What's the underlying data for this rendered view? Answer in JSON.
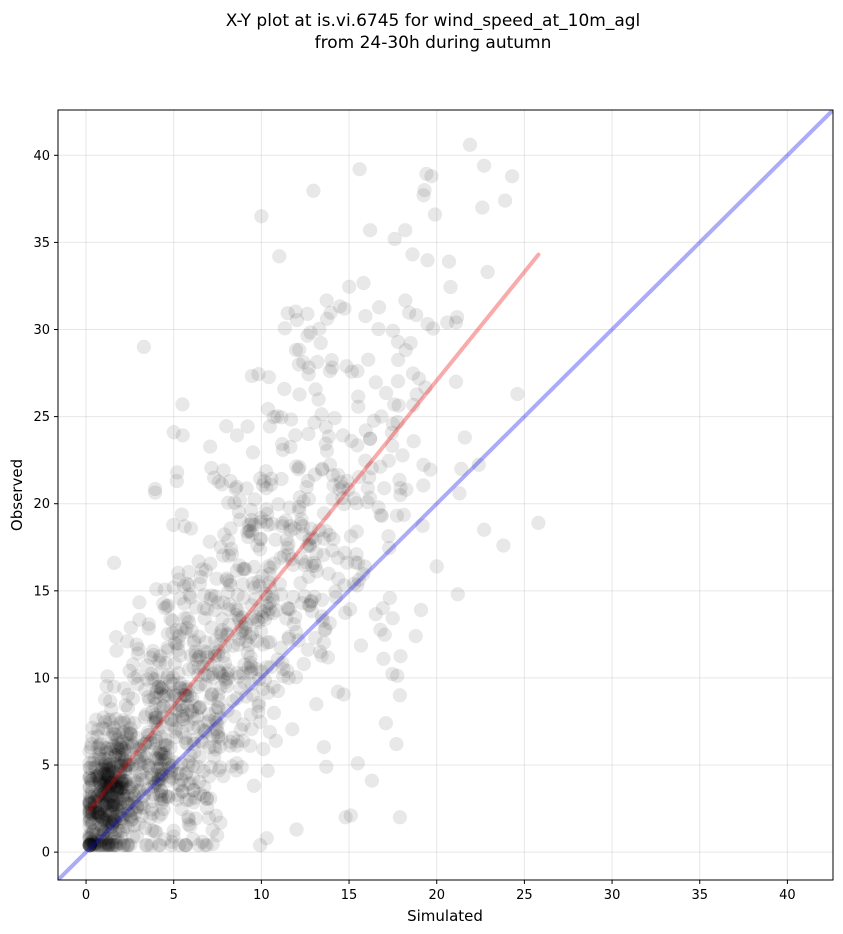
{
  "chart_data": {
    "type": "scatter",
    "title_lines": [
      "X-Y plot at is.vi.6745 for wind_speed_at_10m_agl",
      "from 24-30h during autumn"
    ],
    "xlabel": "Simulated",
    "ylabel": "Observed",
    "xlim": [
      -1.6,
      42.6
    ],
    "ylim": [
      -1.6,
      42.6
    ],
    "xticks": [
      0,
      5,
      10,
      15,
      20,
      25,
      30,
      35,
      40
    ],
    "yticks": [
      0,
      5,
      10,
      15,
      20,
      25,
      30,
      35,
      40
    ],
    "grid": true,
    "marker_color": "#000000",
    "marker_alpha": 0.09,
    "lines": [
      {
        "kind": "identity (1:1)",
        "color": "#0000ee",
        "alpha": 0.33,
        "points": [
          [
            -1.6,
            -1.6
          ],
          [
            42.6,
            42.6
          ]
        ]
      },
      {
        "kind": "regression fit",
        "color": "#ee0000",
        "alpha": 0.33,
        "points": [
          [
            0.2,
            2.4
          ],
          [
            25.8,
            34.3
          ]
        ]
      }
    ],
    "outliers": [
      [
        3.3,
        29.0
      ],
      [
        10.0,
        36.5
      ],
      [
        15.6,
        39.2
      ],
      [
        21.9,
        40.6
      ],
      [
        22.7,
        39.4
      ],
      [
        19.7,
        38.8
      ],
      [
        24.3,
        38.8
      ],
      [
        19.3,
        38.0
      ],
      [
        23.9,
        37.4
      ],
      [
        22.6,
        37.0
      ],
      [
        19.9,
        36.6
      ],
      [
        17.6,
        35.2
      ],
      [
        18.2,
        35.7
      ],
      [
        16.2,
        35.7
      ],
      [
        20.7,
        33.9
      ],
      [
        22.9,
        33.3
      ],
      [
        24.6,
        26.3
      ],
      [
        25.8,
        18.9
      ],
      [
        23.8,
        17.6
      ],
      [
        21.2,
        14.8
      ],
      [
        22.7,
        18.5
      ],
      [
        5.5,
        25.7
      ],
      [
        5.0,
        24.1
      ],
      [
        5.2,
        21.8
      ],
      [
        1.6,
        16.6
      ],
      [
        17.9,
        2.0
      ],
      [
        14.8,
        2.0
      ],
      [
        10.3,
        0.8
      ],
      [
        12.0,
        1.3
      ],
      [
        16.3,
        4.1
      ],
      [
        15.5,
        5.1
      ],
      [
        17.1,
        7.4
      ],
      [
        17.9,
        9.0
      ],
      [
        20.0,
        16.4
      ],
      [
        19.1,
        13.9
      ],
      [
        21.4,
        22.0
      ],
      [
        21.3,
        20.6
      ],
      [
        20.6,
        30.4
      ],
      [
        21.1,
        30.4
      ],
      [
        21.1,
        27.0
      ],
      [
        21.6,
        23.8
      ],
      [
        18.8,
        12.4
      ],
      [
        17.7,
        6.2
      ],
      [
        13.7,
        4.9
      ],
      [
        15.1,
        2.1
      ]
    ],
    "clusters": [
      {
        "cx": 1.2,
        "cy": 3.2,
        "sx": 0.75,
        "sy": 1.7,
        "n": 340
      },
      {
        "cx": 3.8,
        "cy": 5.5,
        "sx": 2.0,
        "sy": 3.3,
        "n": 320
      },
      {
        "cx": 7.0,
        "cy": 10.5,
        "sx": 2.6,
        "sy": 4.8,
        "n": 320
      },
      {
        "cx": 11.0,
        "cy": 16.5,
        "sx": 3.0,
        "sy": 5.5,
        "n": 240
      },
      {
        "cx": 15.5,
        "cy": 23.5,
        "sx": 3.0,
        "sy": 5.8,
        "n": 150
      }
    ]
  }
}
